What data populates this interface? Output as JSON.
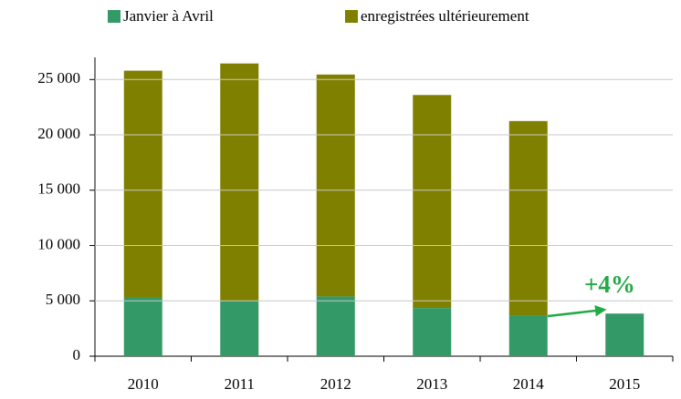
{
  "chart_data": {
    "type": "stacked_bar",
    "categories": [
      "2010",
      "2011",
      "2012",
      "2013",
      "2014",
      "2015"
    ],
    "series": [
      {
        "name": "Janvier à Avril",
        "color": "#339966",
        "values": [
          5350,
          5000,
          5400,
          4350,
          3700,
          3850
        ]
      },
      {
        "name": "enregistrées ultérieurement",
        "color": "#808000",
        "values": [
          20450,
          21450,
          20050,
          19250,
          17550,
          null
        ]
      }
    ],
    "ylim": [
      0,
      27000
    ],
    "yticks": [
      0,
      {
        "value": 5000,
        "label": "5 000"
      },
      {
        "value": 10000,
        "label": "10 000"
      },
      {
        "value": 15000,
        "label": "15 000"
      },
      {
        "value": 20000,
        "label": "20 000"
      },
      {
        "value": 25000,
        "label": "25 000"
      }
    ],
    "grid": true,
    "annotation": "+4%"
  }
}
